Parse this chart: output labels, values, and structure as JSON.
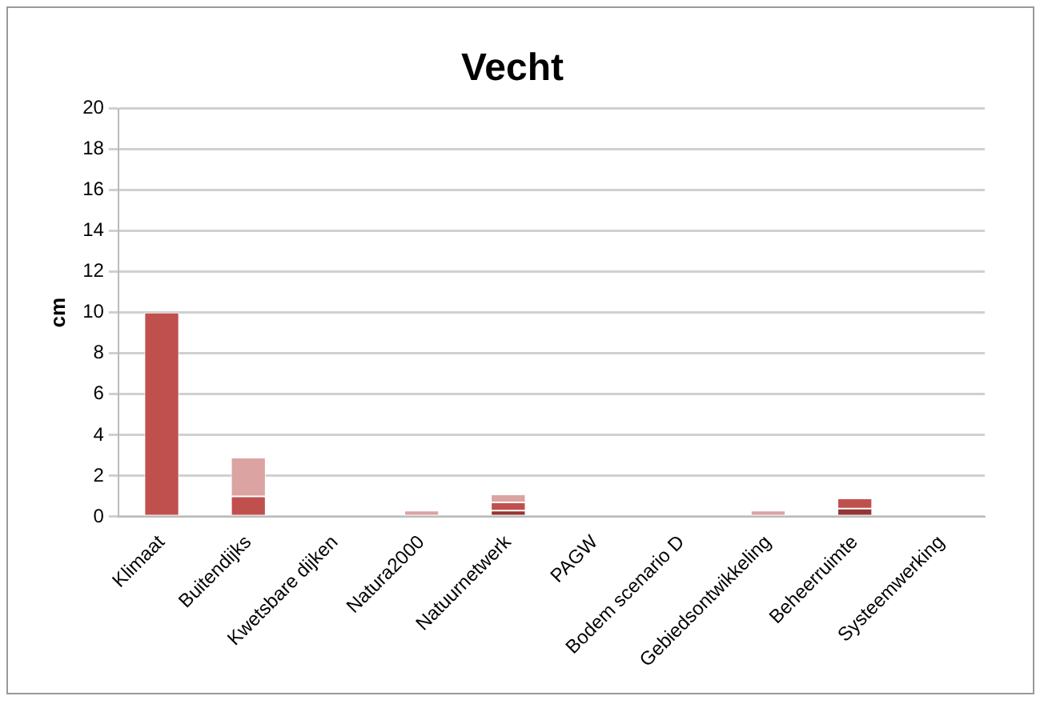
{
  "chart_data": {
    "type": "bar",
    "title": "Vecht",
    "ylabel": "cm",
    "stacked": true,
    "grid": "y",
    "legend": false,
    "categories": [
      "Klimaat",
      "Buitendijks",
      "Kwetsbare dijken",
      "Natura2000",
      "Natuurnetwerk",
      "PAGW",
      "Bodem scenario D",
      "Gebiedsontwikkeling",
      "Beheerruimte",
      "Systeemwerking"
    ],
    "series": [
      {
        "color": "#943634",
        "values": [
          null,
          null,
          null,
          null,
          0.3,
          null,
          null,
          null,
          0.4,
          null
        ]
      },
      {
        "color": "#c0504d",
        "values": [
          10,
          1,
          null,
          null,
          0.4,
          null,
          null,
          null,
          0.5,
          null
        ]
      },
      {
        "color": "#dba3a2",
        "values": [
          null,
          1.9,
          null,
          0.3,
          0.4,
          null,
          null,
          0.3,
          null,
          null
        ]
      }
    ],
    "ylim": [
      0,
      20
    ],
    "yticks": [
      0,
      2,
      4,
      6,
      8,
      10,
      12,
      14,
      16,
      18,
      20
    ]
  }
}
